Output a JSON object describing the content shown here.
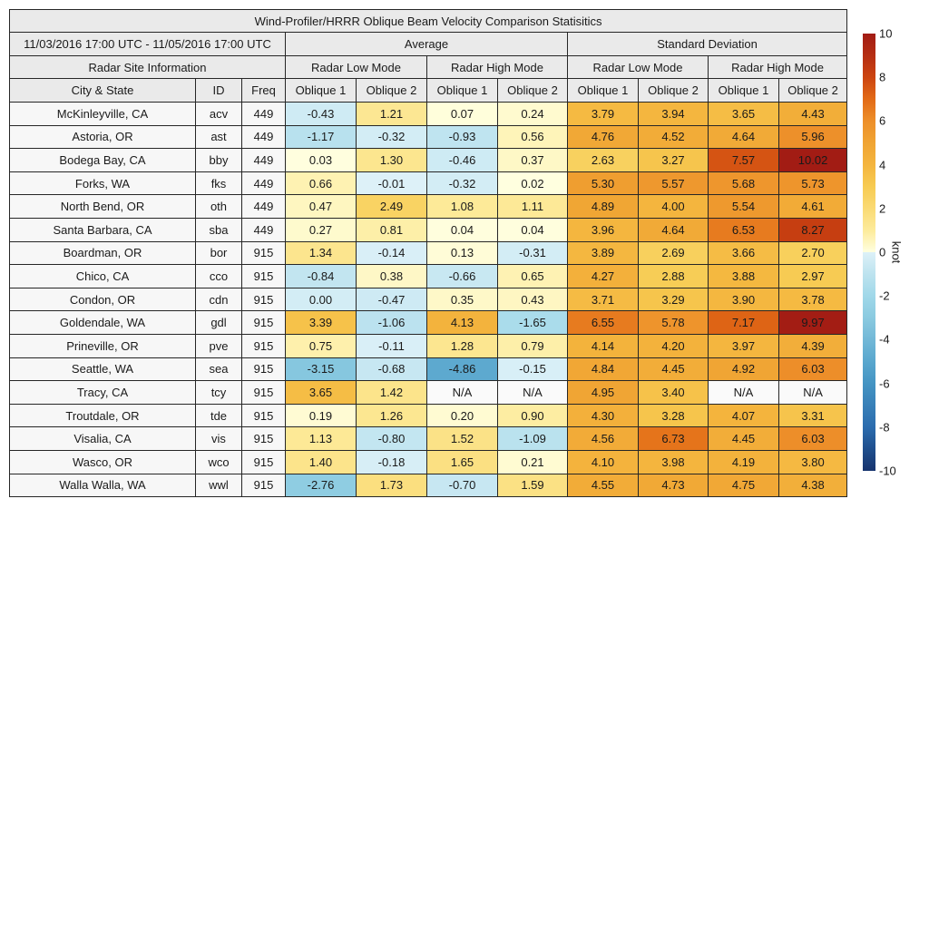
{
  "chart_data": {
    "type": "table",
    "title": "Wind-Profiler/HRRR Oblique Beam Velocity Comparison Statisitics",
    "date_range": "11/03/2016 17:00 UTC - 11/05/2016 17:00 UTC",
    "group_headers": [
      "Average",
      "Standard Deviation"
    ],
    "site_info_header": "Radar Site Information",
    "mode_headers": [
      "Radar Low Mode",
      "Radar High Mode",
      "Radar Low Mode",
      "Radar High Mode"
    ],
    "column_headers": [
      "City & State",
      "ID",
      "Freq",
      "Oblique 1",
      "Oblique 2",
      "Oblique 1",
      "Oblique 2",
      "Oblique 1",
      "Oblique 2",
      "Oblique 1",
      "Oblique 2"
    ],
    "rows": [
      {
        "city": "McKinleyville, CA",
        "id": "acv",
        "freq": "449",
        "values": [
          "-0.43",
          "1.21",
          "0.07",
          "0.24",
          "3.79",
          "3.94",
          "3.65",
          "4.43"
        ]
      },
      {
        "city": "Astoria, OR",
        "id": "ast",
        "freq": "449",
        "values": [
          "-1.17",
          "-0.32",
          "-0.93",
          "0.56",
          "4.76",
          "4.52",
          "4.64",
          "5.96"
        ]
      },
      {
        "city": "Bodega Bay, CA",
        "id": "bby",
        "freq": "449",
        "values": [
          "0.03",
          "1.30",
          "-0.46",
          "0.37",
          "2.63",
          "3.27",
          "7.57",
          "10.02"
        ]
      },
      {
        "city": "Forks, WA",
        "id": "fks",
        "freq": "449",
        "values": [
          "0.66",
          "-0.01",
          "-0.32",
          "0.02",
          "5.30",
          "5.57",
          "5.68",
          "5.73"
        ]
      },
      {
        "city": "North Bend, OR",
        "id": "oth",
        "freq": "449",
        "values": [
          "0.47",
          "2.49",
          "1.08",
          "1.11",
          "4.89",
          "4.00",
          "5.54",
          "4.61"
        ]
      },
      {
        "city": "Santa Barbara, CA",
        "id": "sba",
        "freq": "449",
        "values": [
          "0.27",
          "0.81",
          "0.04",
          "0.04",
          "3.96",
          "4.64",
          "6.53",
          "8.27"
        ]
      },
      {
        "city": "Boardman, OR",
        "id": "bor",
        "freq": "915",
        "values": [
          "1.34",
          "-0.14",
          "0.13",
          "-0.31",
          "3.89",
          "2.69",
          "3.66",
          "2.70"
        ]
      },
      {
        "city": "Chico, CA",
        "id": "cco",
        "freq": "915",
        "values": [
          "-0.84",
          "0.38",
          "-0.66",
          "0.65",
          "4.27",
          "2.88",
          "3.88",
          "2.97"
        ]
      },
      {
        "city": "Condon, OR",
        "id": "cdn",
        "freq": "915",
        "values": [
          "0.00",
          "-0.47",
          "0.35",
          "0.43",
          "3.71",
          "3.29",
          "3.90",
          "3.78"
        ]
      },
      {
        "city": "Goldendale, WA",
        "id": "gdl",
        "freq": "915",
        "values": [
          "3.39",
          "-1.06",
          "4.13",
          "-1.65",
          "6.55",
          "5.78",
          "7.17",
          "9.97"
        ]
      },
      {
        "city": "Prineville, OR",
        "id": "pve",
        "freq": "915",
        "values": [
          "0.75",
          "-0.11",
          "1.28",
          "0.79",
          "4.14",
          "4.20",
          "3.97",
          "4.39"
        ]
      },
      {
        "city": "Seattle, WA",
        "id": "sea",
        "freq": "915",
        "values": [
          "-3.15",
          "-0.68",
          "-4.86",
          "-0.15",
          "4.84",
          "4.45",
          "4.92",
          "6.03"
        ]
      },
      {
        "city": "Tracy, CA",
        "id": "tcy",
        "freq": "915",
        "values": [
          "3.65",
          "1.42",
          "N/A",
          "N/A",
          "4.95",
          "3.40",
          "N/A",
          "N/A"
        ]
      },
      {
        "city": "Troutdale, OR",
        "id": "tde",
        "freq": "915",
        "values": [
          "0.19",
          "1.26",
          "0.20",
          "0.90",
          "4.30",
          "3.28",
          "4.07",
          "3.31"
        ]
      },
      {
        "city": "Visalia, CA",
        "id": "vis",
        "freq": "915",
        "values": [
          "1.13",
          "-0.80",
          "1.52",
          "-1.09",
          "4.56",
          "6.73",
          "4.45",
          "6.03"
        ]
      },
      {
        "city": "Wasco, OR",
        "id": "wco",
        "freq": "915",
        "values": [
          "1.40",
          "-0.18",
          "1.65",
          "0.21",
          "4.10",
          "3.98",
          "4.19",
          "3.80"
        ]
      },
      {
        "city": "Walla Walla, WA",
        "id": "wwl",
        "freq": "915",
        "values": [
          "-2.76",
          "1.73",
          "-0.70",
          "1.59",
          "4.55",
          "4.73",
          "4.75",
          "4.38"
        ]
      }
    ],
    "color_value_overrides": [
      {
        "row": 8,
        "col": 0,
        "value": -0.3
      }
    ],
    "colorbar": {
      "unit": "knot",
      "vmax": 10,
      "vmin": -10,
      "tick_labels": [
        "10",
        "8",
        "6",
        "4",
        "2",
        "0",
        "-2",
        "-4",
        "-6",
        "-8",
        "-10"
      ],
      "positive_anchors": [
        [
          0,
          "#ffffe0"
        ],
        [
          1,
          "#fdeb9b"
        ],
        [
          2,
          "#fada74"
        ],
        [
          3,
          "#f7cb52"
        ],
        [
          4,
          "#f4b53e"
        ],
        [
          5,
          "#f0a433"
        ],
        [
          6,
          "#ed8f2a"
        ],
        [
          7,
          "#e26a16"
        ],
        [
          8,
          "#cc4410"
        ],
        [
          9,
          "#b52e13"
        ],
        [
          10,
          "#a21c14"
        ]
      ],
      "negative_anchors": [
        [
          0,
          "#ddf1f8"
        ],
        [
          1,
          "#bde3ef"
        ],
        [
          2,
          "#a0d8e9"
        ],
        [
          3,
          "#8acae0"
        ],
        [
          4,
          "#72b8d7"
        ],
        [
          5,
          "#59a7ce"
        ],
        [
          6,
          "#4494c3"
        ],
        [
          7,
          "#3880b8"
        ],
        [
          8,
          "#2b6cae"
        ],
        [
          9,
          "#1f4f8d"
        ],
        [
          10,
          "#16336e"
        ]
      ]
    }
  },
  "colors": {
    "header_bg": "#eaeaea",
    "info_cell_bg": "#f7f7f7",
    "na_cell_bg": "#fafafa",
    "border": "#262626",
    "text": "#1a1a1a",
    "background": "#ffffff"
  }
}
